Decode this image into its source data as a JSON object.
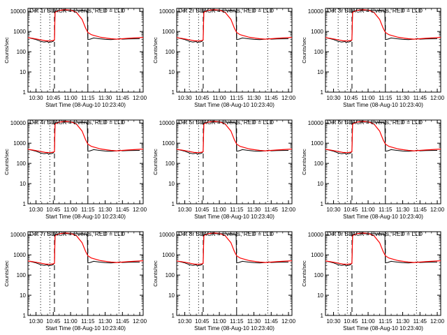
{
  "figure": {
    "ylabel": "Counts/sec",
    "xlabel": "Start Time (08-Aug-10 10:23:40)"
  },
  "chart_data": [
    {
      "type": "line",
      "title": "Det 1r BLACK = Events, RED = LLD"
    },
    {
      "type": "line",
      "title": "Det 2r BLACK = Events, RED = LLD"
    },
    {
      "type": "line",
      "title": "Det 3r BLACK = Events, RED = LLD"
    },
    {
      "type": "line",
      "title": "Det 4r BLACK = Events, RED = LLD"
    },
    {
      "type": "line",
      "title": "Det 5r BLACK = Events, RED = LLD"
    },
    {
      "type": "line",
      "title": "Det 6r BLACK = Events, RED = LLD"
    },
    {
      "type": "line",
      "title": "Det 7r BLACK = Events, RED = LLD"
    },
    {
      "type": "line",
      "title": "Det 8r BLACK = Events, RED = LLD"
    },
    {
      "type": "line",
      "title": "Det 9r BLACK = Events, RED = LLD"
    }
  ],
  "shared": {
    "x_ticks": [
      "10:30",
      "10:45",
      "11:00",
      "11:15",
      "11:30",
      "11:45",
      "12:00"
    ],
    "x_tick_minutes": [
      630,
      645,
      660,
      675,
      690,
      705,
      720
    ],
    "xlim_minutes": [
      623,
      723
    ],
    "y_ticks": [
      "1",
      "10",
      "100",
      "1000",
      "10000"
    ],
    "ylim": [
      1,
      14000
    ],
    "yscale": "log",
    "dotted_vlines_minutes": [
      634,
      642,
      702
    ],
    "dashed_vlines_minutes": [
      646,
      675
    ],
    "colors": {
      "events": "#000000",
      "lld": "#ff0000",
      "axes": "#000000"
    },
    "series": {
      "events": {
        "name": "Events",
        "x": [
          623,
          630,
          634,
          637,
          640,
          641,
          642,
          643,
          645,
          646,
          646.5,
          648,
          650,
          660,
          665,
          670,
          673,
          674.5,
          675,
          677,
          680,
          685,
          690,
          695,
          700,
          703,
          704,
          705,
          710,
          720
        ],
        "y": [
          500,
          400,
          330,
          300,
          320,
          280,
          310,
          300,
          330,
          400,
          9000,
          10500,
          11000,
          11200,
          11000,
          10800,
          10500,
          10000,
          400,
          420,
          480,
          440,
          410,
          400,
          420,
          450,
          430,
          420,
          430,
          440
        ]
      },
      "lld": {
        "name": "LLD",
        "x": [
          623,
          628,
          633,
          638,
          642,
          645,
          646,
          646.5,
          650,
          655,
          660,
          665,
          670,
          673,
          675,
          678,
          682,
          686,
          690,
          695,
          700,
          705,
          710,
          715,
          720,
          723
        ],
        "y": [
          500,
          450,
          400,
          350,
          340,
          360,
          380,
          9000,
          11000,
          12000,
          11500,
          9000,
          4000,
          1500,
          900,
          700,
          600,
          520,
          480,
          440,
          420,
          440,
          460,
          480,
          500,
          510
        ]
      }
    }
  }
}
